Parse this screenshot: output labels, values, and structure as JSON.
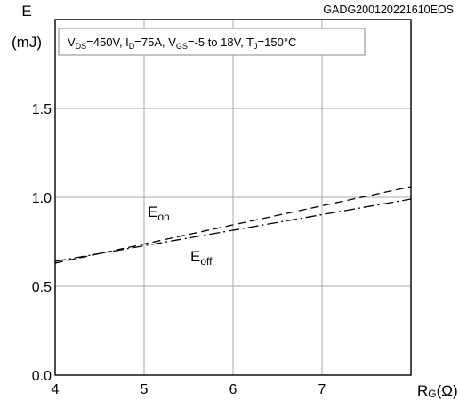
{
  "chart_data": {
    "type": "line",
    "figure_id": "GADG200120221610EOS",
    "conditions": {
      "vds": {
        "main": "V",
        "sub": "DS",
        "rest": "=450V, "
      },
      "id": {
        "main": "I",
        "sub": "D",
        "rest": "=75A, "
      },
      "vgs": {
        "main": "V",
        "sub": "GS",
        "rest": "=-5 to 18V, "
      },
      "tj": {
        "main": "T",
        "sub": "J",
        "rest": "=150°C"
      }
    },
    "ylabel": {
      "line1": "E",
      "line2": "(mJ)"
    },
    "xlabel": {
      "main": "R",
      "sub": "G",
      "rest": "(Ω)"
    },
    "xlim": [
      4,
      8
    ],
    "ylim": [
      0.0,
      2.0
    ],
    "xticks": [
      "4",
      "5",
      "6",
      "7"
    ],
    "yticks": [
      "0.0",
      "0.5",
      "1.0",
      "1.5"
    ],
    "grid": true,
    "series": [
      {
        "name": "E_on",
        "label": {
          "main": "E",
          "sub": "on"
        },
        "style": "dashed",
        "x": [
          4,
          8
        ],
        "y": [
          0.63,
          1.06
        ]
      },
      {
        "name": "E_off",
        "label": {
          "main": "E",
          "sub": "off"
        },
        "style": "dashdot",
        "x": [
          4,
          8
        ],
        "y": [
          0.64,
          0.99
        ]
      }
    ]
  }
}
